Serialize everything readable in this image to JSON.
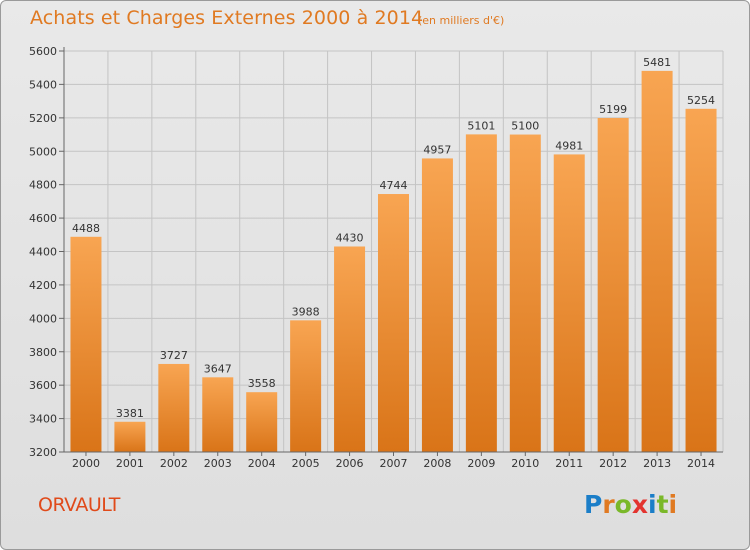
{
  "header": {
    "title": "Achats et Charges Externes 2000 à 2014",
    "subtitle": "(en milliers d'€)"
  },
  "footer": {
    "commune": "ORVAULT",
    "logo": "Proxiti"
  },
  "colors": {
    "bar_light": "#f8a552",
    "bar_dark": "#d97418",
    "title": "#e07a22",
    "commune": "#e04a1a",
    "logo_letters": [
      "#1b7ec8",
      "#e07a22",
      "#7ab829",
      "#e3342f",
      "#1b7ec8",
      "#7ab829",
      "#e07a22"
    ]
  },
  "chart_data": {
    "type": "bar",
    "title": "Achats et Charges Externes 2000 à 2014",
    "subtitle": "(en milliers d'€)",
    "xlabel": "",
    "ylabel": "",
    "categories": [
      "2000",
      "2001",
      "2002",
      "2003",
      "2004",
      "2005",
      "2006",
      "2007",
      "2008",
      "2009",
      "2010",
      "2011",
      "2012",
      "2013",
      "2014"
    ],
    "values": [
      4488,
      3381,
      3727,
      3647,
      3558,
      3988,
      4430,
      4744,
      4957,
      5101,
      5100,
      4981,
      5199,
      5481,
      5254
    ],
    "ylim": [
      3200,
      5600
    ],
    "yticks": [
      3200,
      3400,
      3600,
      3800,
      4000,
      4200,
      4400,
      4600,
      4800,
      5000,
      5200,
      5400,
      5600
    ],
    "grid": true,
    "legend": "none"
  }
}
